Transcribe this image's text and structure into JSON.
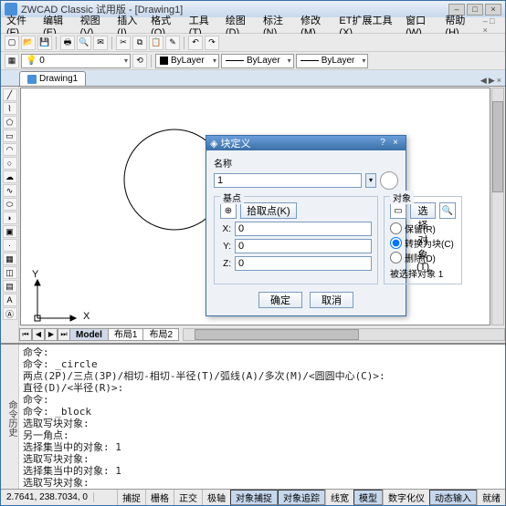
{
  "app": {
    "title": "ZWCAD Classic 试用版 - [Drawing1]"
  },
  "menus": [
    "文件(F)",
    "编辑(E)",
    "视图(V)",
    "插入(I)",
    "格式(O)",
    "工具(T)",
    "绘图(D)",
    "标注(N)",
    "修改(M)",
    "ET扩展工具(X)",
    "窗口(W)",
    "帮助(H)"
  ],
  "toolbar_main_icons": [
    "new",
    "open",
    "save",
    "print",
    "preview",
    "mail",
    "cut",
    "copy",
    "paste",
    "match",
    "undo",
    "redo"
  ],
  "toolbar_layer": {
    "state": "",
    "layer_name": "0",
    "color_combo": "ByLayer",
    "linetype_combo": "ByLayer",
    "lineweight_combo": "ByLayer"
  },
  "doc_tab": "Drawing1",
  "left_tool_icons": [
    "line",
    "polyline",
    "polygon",
    "rect",
    "arc",
    "circle",
    "revcloud",
    "spline",
    "ellipse",
    "ellipsearc",
    "block",
    "point",
    "hatch",
    "region",
    "table",
    "text",
    "mtext"
  ],
  "canvas": {
    "axis_x": "X",
    "axis_y": "Y"
  },
  "model_tabs": {
    "nav": [
      "⏮",
      "◀",
      "▶",
      "⏭"
    ],
    "tabs": [
      "Model",
      "布局1",
      "布局2"
    ]
  },
  "cmd_gutter": "命令历史",
  "cmd_lines": "命令:\n命令: _circle\n两点(2P)/三点(3P)/相切-相切-半径(T)/弧线(A)/多次(M)/<圆圆中心(C)>:\n直径(D)/<半径(R)>:\n命令:\n命令: _block\n选取写块对象:\n另一角点:\n选择集当中的对象: 1\n选取写块对象:\n选择集当中的对象: 1\n选取写块对象:",
  "status": {
    "coords": "2.7641,  238.7034,  0",
    "buttons": [
      "捕捉",
      "栅格",
      "正交",
      "极轴",
      "对象捕捉",
      "对象追踪",
      "线宽",
      "模型",
      "数字化仪",
      "动态输入",
      "就绪"
    ],
    "active": [
      "对象捕捉",
      "对象追踪",
      "模型",
      "动态输入"
    ]
  },
  "dialog": {
    "title": "块定义",
    "name_label": "名称",
    "name_value": "1",
    "base_group": "基点",
    "pick_point_btn": "拾取点(K)",
    "x_label": "X:",
    "x_value": "0",
    "y_label": "Y:",
    "y_value": "0",
    "z_label": "Z:",
    "z_value": "0",
    "obj_group": "对象",
    "select_obj_btn": "选择对象(T)",
    "opt_retain": "保留(R)",
    "opt_convert": "转换为块(C)",
    "opt_delete": "删除(D)",
    "selected_text": "被选择对象 1",
    "ok": "确定",
    "cancel": "取消"
  }
}
